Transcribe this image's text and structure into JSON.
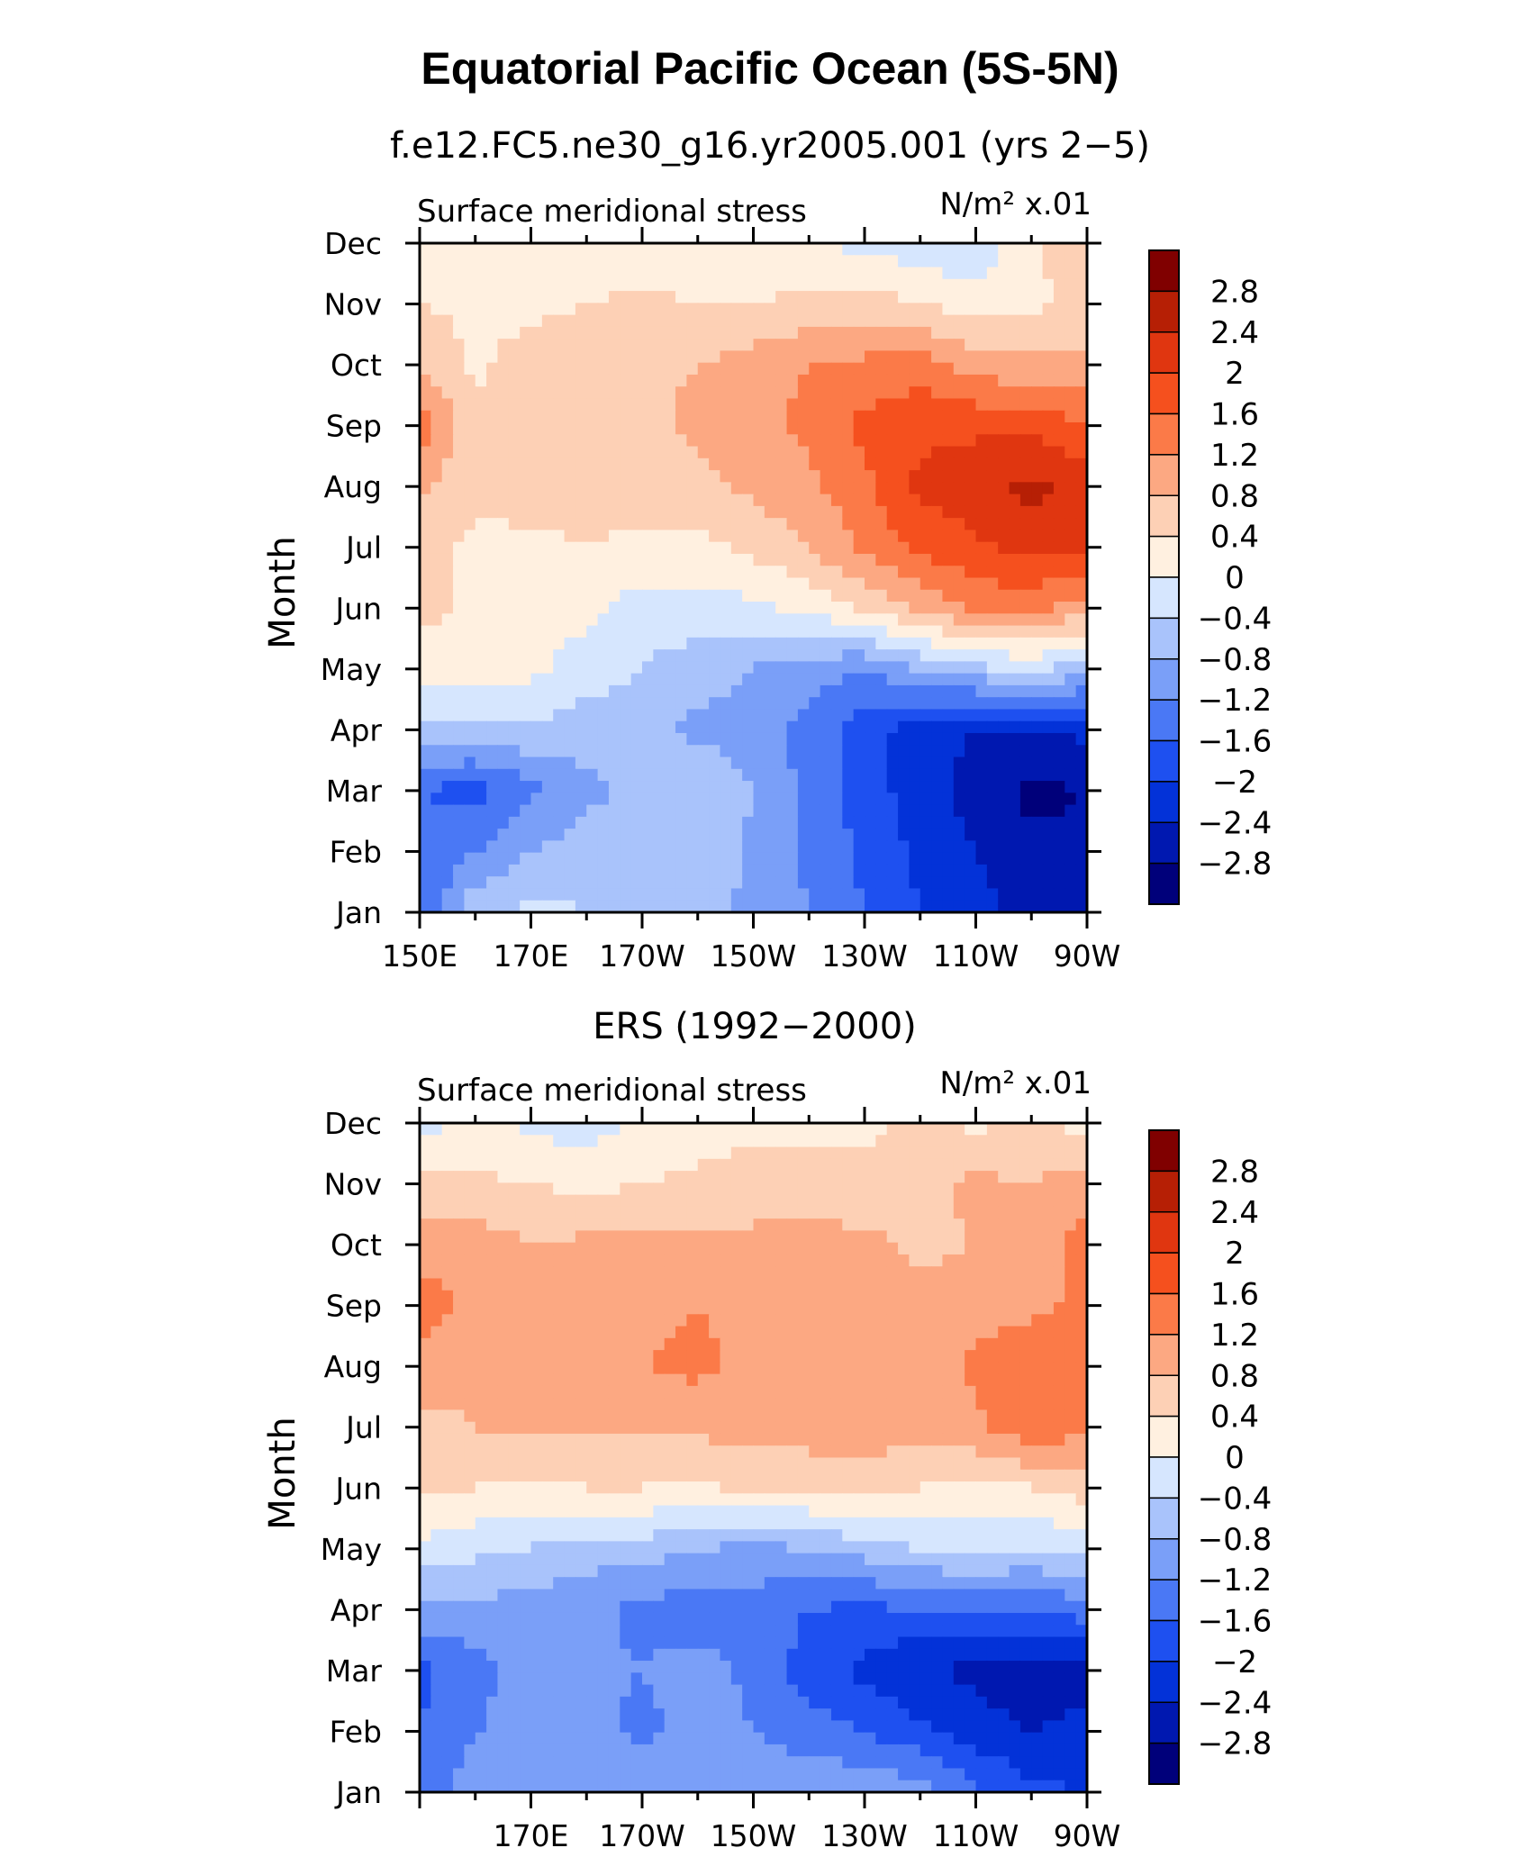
{
  "title": "Equatorial Pacific Ocean (5S-5N)",
  "colors": [
    "#00007a",
    "#0018b0",
    "#0332d8",
    "#1e50f0",
    "#4a78f5",
    "#7a9ff8",
    "#a9c3fb",
    "#d6e6fe",
    "#fff0e0",
    "#fdd0b5",
    "#fca882",
    "#fb7a48",
    "#f5501e",
    "#e03610",
    "#b61f05",
    "#800000"
  ],
  "colorbar_labels": [
    "2.8",
    "2.4",
    "2",
    "1.6",
    "1.2",
    "0.8",
    "0.4",
    "0",
    "−0.4",
    "−0.8",
    "−1.2",
    "−1.6",
    "−2",
    "−2.4",
    "−2.8"
  ],
  "chart_data": [
    {
      "type": "heatmap",
      "subtitle": "f.e12.FC5.ne30_g16.yr2005.001 (yrs 2−5)",
      "left_label": "Surface meridional stress",
      "units": "N/m² x.01",
      "ylabel": "Month",
      "months": [
        "Jan",
        "Feb",
        "Mar",
        "Apr",
        "May",
        "Jun",
        "Jul",
        "Aug",
        "Sep",
        "Oct",
        "Nov",
        "Dec"
      ],
      "x_tick_labels": [
        "150E",
        "170E",
        "170W",
        "150W",
        "130W",
        "110W",
        "90W"
      ],
      "lon": [
        150,
        160,
        170,
        180,
        190,
        200,
        210,
        220,
        230,
        240,
        250,
        260,
        270
      ],
      "values": [
        [
          -1.7,
          -0.5,
          -0.3,
          -0.4,
          -0.6,
          -0.7,
          -0.9,
          -1.2,
          -1.6,
          -2.0,
          -2.3,
          -2.5,
          -2.5
        ],
        [
          -1.5,
          -1.2,
          -0.8,
          -0.6,
          -0.5,
          -0.4,
          -0.9,
          -1.3,
          -1.7,
          -2.1,
          -2.4,
          -2.7,
          -2.7
        ],
        [
          -1.6,
          -1.8,
          -1.3,
          -0.9,
          -0.7,
          -0.4,
          -0.8,
          -1.3,
          -1.8,
          -2.2,
          -2.6,
          -2.9,
          -2.8
        ],
        [
          -0.6,
          -0.5,
          -0.5,
          -0.6,
          -0.7,
          -0.9,
          -1.0,
          -1.4,
          -1.8,
          -2.2,
          -2.4,
          -2.4,
          -2.3
        ],
        [
          0.2,
          0.3,
          0.1,
          -0.2,
          -0.4,
          -0.6,
          -0.8,
          -1.0,
          -1.2,
          -0.8,
          -0.5,
          -0.3,
          -0.6
        ],
        [
          0.5,
          0.3,
          0.2,
          0.1,
          -0.2,
          -0.2,
          -0.1,
          0.1,
          0.5,
          0.9,
          1.3,
          1.3,
          1.0
        ],
        [
          0.6,
          0.3,
          0.3,
          0.4,
          0.3,
          0.3,
          0.5,
          0.8,
          1.3,
          1.7,
          1.9,
          2.2,
          2.0
        ],
        [
          0.9,
          0.5,
          0.6,
          0.6,
          0.6,
          0.7,
          0.9,
          1.1,
          1.5,
          2.1,
          2.3,
          2.5,
          2.3
        ],
        [
          1.4,
          0.5,
          0.7,
          0.7,
          0.7,
          0.9,
          1.1,
          1.3,
          1.7,
          1.9,
          1.9,
          1.9,
          1.6
        ],
        [
          0.8,
          0.3,
          0.6,
          0.6,
          0.7,
          0.8,
          1.0,
          1.2,
          1.3,
          1.4,
          1.0,
          0.9,
          0.9
        ],
        [
          0.4,
          0.3,
          0.3,
          0.4,
          0.5,
          0.4,
          0.4,
          0.5,
          0.6,
          0.4,
          0.2,
          0.3,
          0.5
        ],
        [
          0.1,
          0.0,
          0.0,
          0.1,
          0.2,
          0.1,
          0.1,
          0.0,
          -0.1,
          -0.3,
          -0.3,
          0.3,
          0.8
        ]
      ]
    },
    {
      "type": "heatmap",
      "subtitle": "ERS (1992−2000)",
      "left_label": "Surface meridional stress",
      "units": "N/m² x.01",
      "ylabel": "Month",
      "months": [
        "Jan",
        "Feb",
        "Mar",
        "Apr",
        "May",
        "Jun",
        "Jul",
        "Aug",
        "Sep",
        "Oct",
        "Nov",
        "Dec"
      ],
      "x_tick_labels": [
        "170E",
        "170W",
        "150W",
        "130W",
        "110W",
        "90W"
      ],
      "lon": [
        150,
        160,
        170,
        180,
        190,
        200,
        210,
        220,
        230,
        240,
        250,
        260,
        270
      ],
      "values": [
        [
          -1.4,
          -1.0,
          -1.1,
          -0.9,
          -0.8,
          -0.8,
          -0.9,
          -0.9,
          -0.9,
          -1.0,
          -1.5,
          -1.9,
          -2.0
        ],
        [
          -1.6,
          -1.2,
          -1.1,
          -1.1,
          -1.3,
          -1.1,
          -1.2,
          -1.4,
          -1.6,
          -1.9,
          -2.2,
          -2.4,
          -2.3
        ],
        [
          -1.7,
          -1.4,
          -0.8,
          -1.1,
          -1.2,
          -1.0,
          -1.3,
          -1.8,
          -2.1,
          -2.4,
          -2.5,
          -2.7,
          -2.5
        ],
        [
          -0.9,
          -0.9,
          -1.0,
          -1.1,
          -1.3,
          -1.5,
          -1.4,
          -1.6,
          -1.7,
          -1.6,
          -1.5,
          -1.6,
          -1.4
        ],
        [
          -0.1,
          -0.3,
          -0.4,
          -0.6,
          -0.6,
          -0.8,
          -0.9,
          -0.8,
          -0.6,
          -0.4,
          -0.3,
          -0.4,
          -0.3
        ],
        [
          0.5,
          0.4,
          0.3,
          0.4,
          0.4,
          0.3,
          0.5,
          0.5,
          0.6,
          0.4,
          0.3,
          0.4,
          0.6
        ],
        [
          0.7,
          0.8,
          0.9,
          0.9,
          0.8,
          0.9,
          1.0,
          1.0,
          1.1,
          0.9,
          1.1,
          1.5,
          1.3
        ],
        [
          1.0,
          0.9,
          1.0,
          1.1,
          1.2,
          1.3,
          1.1,
          1.0,
          1.0,
          0.9,
          1.3,
          1.5,
          1.4
        ],
        [
          1.4,
          1.1,
          0.9,
          1.1,
          1.1,
          1.2,
          1.0,
          1.1,
          1.0,
          0.9,
          1.0,
          1.1,
          1.3
        ],
        [
          1.0,
          1.0,
          0.8,
          0.9,
          1.0,
          0.9,
          0.9,
          0.9,
          0.9,
          0.7,
          0.8,
          0.9,
          1.4
        ],
        [
          0.5,
          0.5,
          0.4,
          0.3,
          0.4,
          0.5,
          0.6,
          0.7,
          0.5,
          0.7,
          0.9,
          0.8,
          1.0
        ],
        [
          -0.2,
          0.1,
          -0.1,
          -0.2,
          0.1,
          0.2,
          0.3,
          0.2,
          0.3,
          0.5,
          0.3,
          0.5,
          0.2
        ]
      ]
    }
  ]
}
